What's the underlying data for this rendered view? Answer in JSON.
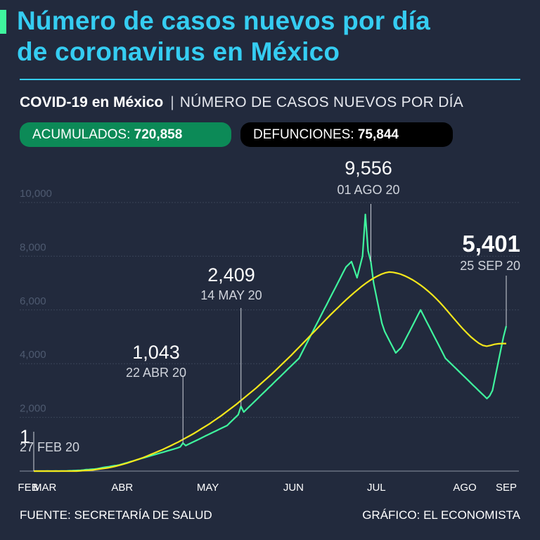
{
  "header": {
    "title_line1": "Número de casos nuevos por día",
    "title_line2": "de coronavirus en México",
    "subtitle_bold": "COVID-19 en México",
    "subtitle_sep": "|",
    "subtitle_light": "NÚMERO DE CASOS NUEVOS POR DÍA"
  },
  "stats": {
    "accumulated_label": "ACUMULADOS:",
    "accumulated_value": "720,858",
    "deaths_label": "DEFUNCIONES:",
    "deaths_value": "75,844"
  },
  "colors": {
    "background": "#222a3d",
    "title": "#35cdf2",
    "series": "#3ff59e",
    "trend": "#f5e71b",
    "accumulated_pill": "#0c8a57",
    "deaths_pill": "#000000"
  },
  "chart_data": {
    "type": "line",
    "title": "",
    "xlabel": "",
    "ylabel": "",
    "ylim": [
      0,
      10000
    ],
    "yticks": [
      2000,
      4000,
      6000,
      8000,
      10000
    ],
    "ytick_labels": [
      "2,000",
      "4,000",
      "6,000",
      "8,000",
      "10,000"
    ],
    "xtick_labels": [
      "FEB",
      "MAR",
      "ABR",
      "MAY",
      "JUN",
      "JUL",
      "AGO",
      "SEP"
    ],
    "x_start": "2020-02-27",
    "x_end": "2020-09-25",
    "grid": true,
    "series": [
      {
        "kind": "daily",
        "values": [
          1,
          0,
          1,
          1,
          1,
          2,
          0,
          1,
          2,
          0,
          3,
          5,
          8,
          12,
          15,
          20,
          25,
          30,
          40,
          55,
          60,
          70,
          75,
          90,
          110,
          130,
          150,
          160,
          180,
          200,
          210,
          230,
          260,
          290,
          320,
          350,
          380,
          410,
          440,
          470,
          500,
          530,
          560,
          590,
          620,
          650,
          680,
          710,
          740,
          770,
          800,
          830,
          860,
          900,
          1043,
          950,
          1000,
          1050,
          1100,
          1150,
          1200,
          1250,
          1300,
          1350,
          1400,
          1450,
          1500,
          1550,
          1600,
          1650,
          1700,
          1800,
          1900,
          2000,
          2100,
          2409,
          2200,
          2300,
          2400,
          2500,
          2600,
          2700,
          2800,
          2900,
          3000,
          3100,
          3200,
          3300,
          3400,
          3500,
          3600,
          3700,
          3800,
          3900,
          4000,
          4100,
          4200,
          4400,
          4600,
          4800,
          5000,
          5200,
          5400,
          5600,
          5800,
          6000,
          6200,
          6400,
          6600,
          6800,
          7000,
          7200,
          7400,
          7600,
          7700,
          7800,
          7500,
          7200,
          7600,
          8000,
          9556,
          8200,
          7800,
          7000,
          6500,
          6000,
          5500,
          5200,
          5000,
          4800,
          4600,
          4400,
          4500,
          4600,
          4800,
          5000,
          5200,
          5400,
          5600,
          5800,
          6000,
          5800,
          5600,
          5400,
          5200,
          5000,
          4800,
          4600,
          4400,
          4200,
          4100,
          4000,
          3900,
          3800,
          3700,
          3600,
          3500,
          3400,
          3300,
          3200,
          3100,
          3000,
          2900,
          2800,
          2700,
          2800,
          3000,
          3500,
          4000,
          4500,
          5000,
          5401
        ]
      },
      {
        "kind": "trend",
        "values": [
          0,
          0,
          0,
          0,
          0,
          0,
          0,
          0,
          0,
          0,
          0,
          0,
          10,
          20,
          30,
          40,
          60,
          80,
          100,
          120,
          150,
          180,
          220,
          260,
          300,
          350,
          400,
          450,
          500,
          560,
          620,
          680,
          740,
          800,
          870,
          940,
          1010,
          1080,
          1160,
          1240,
          1320,
          1400,
          1490,
          1580,
          1670,
          1760,
          1860,
          1960,
          2060,
          2170,
          2280,
          2390,
          2500,
          2620,
          2740,
          2860,
          2980,
          3100,
          3230,
          3360,
          3490,
          3620,
          3760,
          3900,
          4040,
          4180,
          4320,
          4470,
          4620,
          4770,
          4920,
          5070,
          5220,
          5370,
          5520,
          5670,
          5820,
          5960,
          6100,
          6240,
          6380,
          6510,
          6640,
          6760,
          6880,
          6990,
          7090,
          7180,
          7260,
          7330,
          7380,
          7410,
          7400,
          7370,
          7330,
          7270,
          7200,
          7120,
          7030,
          6930,
          6820,
          6700,
          6570,
          6430,
          6280,
          6120,
          5950,
          5780,
          5610,
          5440,
          5280,
          5130,
          4990,
          4870,
          4760,
          4680,
          4650,
          4680,
          4720,
          4740,
          4750,
          4750
        ]
      }
    ],
    "annotations": [
      {
        "value": "1",
        "date": "27 FEB 20"
      },
      {
        "value": "1,043",
        "date": "22 ABR 20"
      },
      {
        "value": "2,409",
        "date": "14 MAY 20"
      },
      {
        "value": "9,556",
        "date": "01 AGO 20"
      },
      {
        "value": "5,401",
        "date": "25 SEP 20"
      }
    ]
  },
  "footer": {
    "source": "FUENTE: SECRETARÍA DE SALUD",
    "credit": "GRÁFICO: EL ECONOMISTA"
  }
}
